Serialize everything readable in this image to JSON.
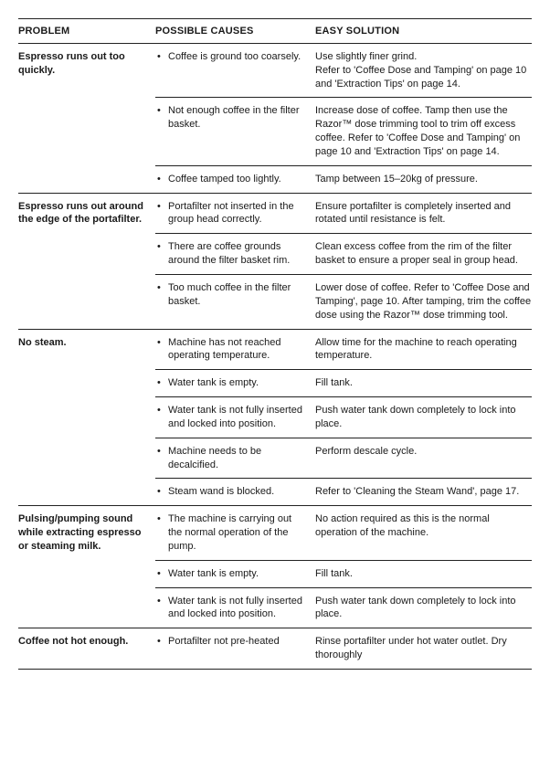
{
  "headers": {
    "problem": "PROBLEM",
    "causes": "POSSIBLE CAUSES",
    "solution": "EASY SOLUTION"
  },
  "sections": [
    {
      "problem": "Espresso runs out too quickly.",
      "rows": [
        {
          "cause": "Coffee is ground too coarsely.",
          "solution": "Use slightly finer grind.\nRefer to 'Coffee Dose and Tamping' on page 10 and 'Extraction Tips' on page 14."
        },
        {
          "cause": "Not enough coffee in the filter basket.",
          "solution": "Increase dose of coffee. Tamp then use the Razor™ dose trimming tool to trim off excess coffee. Refer to 'Coffee Dose and Tamping' on page 10 and 'Extraction Tips' on page 14."
        },
        {
          "cause": "Coffee tamped too lightly.",
          "solution": "Tamp between 15–20kg of pressure."
        }
      ]
    },
    {
      "problem": "Espresso runs out around the edge of the portafilter.",
      "rows": [
        {
          "cause": "Portafilter not inserted in the group head correctly.",
          "solution": "Ensure portafilter is completely inserted and rotated until resistance is felt."
        },
        {
          "cause": "There are coffee grounds around the filter basket rim.",
          "solution": "Clean excess coffee from the rim of the filter basket to ensure a proper seal in group head."
        },
        {
          "cause": "Too much coffee in the filter basket.",
          "solution": "Lower dose of coffee. Refer to 'Coffee Dose and Tamping', page 10. After tamping, trim the coffee dose using the Razor™ dose trimming tool."
        }
      ]
    },
    {
      "problem": "No steam.",
      "rows": [
        {
          "cause": "Machine has not reached operating temperature.",
          "solution": "Allow time for the machine to reach operating temperature."
        },
        {
          "cause": "Water tank is empty.",
          "solution": "Fill tank."
        },
        {
          "cause": "Water tank is not fully inserted and locked into position.",
          "solution": "Push water tank down completely to lock into place."
        },
        {
          "cause": "Machine needs to be decalcified.",
          "solution": "Perform descale cycle."
        },
        {
          "cause": "Steam wand is blocked.",
          "solution": "Refer to 'Cleaning the Steam Wand', page 17."
        }
      ]
    },
    {
      "problem": "Pulsing/pumping sound while extracting espresso or steaming milk.",
      "rows": [
        {
          "cause": "The machine is carrying out the normal operation of the pump.",
          "solution": "No action required as this is the normal operation of the machine."
        },
        {
          "cause": "Water tank is empty.",
          "solution": "Fill tank."
        },
        {
          "cause": "Water tank is not fully inserted and locked into position.",
          "solution": "Push water tank down completely to lock into place."
        }
      ]
    },
    {
      "problem": "Coffee not hot enough.",
      "rows": [
        {
          "cause": "Portafilter not pre-heated",
          "solution": "Rinse portafilter under hot water outlet. Dry thoroughly"
        }
      ]
    }
  ]
}
